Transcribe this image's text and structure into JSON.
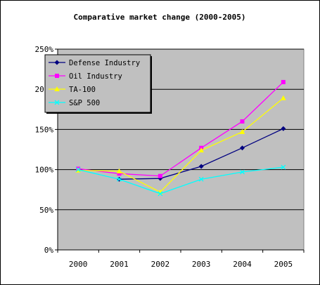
{
  "chart_data": {
    "type": "line",
    "title": "Comparative market change (2000-2005)",
    "xlabel": "",
    "ylabel": "",
    "categories": [
      "2000",
      "2001",
      "2002",
      "2003",
      "2004",
      "2005"
    ],
    "ylim": [
      0,
      250
    ],
    "yticks": [
      0,
      50,
      100,
      150,
      200,
      250
    ],
    "ytick_labels": [
      "0%",
      "50%",
      "100%",
      "150%",
      "200%",
      "250%"
    ],
    "grid": true,
    "plot_background": "#c0c0c0",
    "legend_position": "top-left",
    "series": [
      {
        "name": "Defense Industry",
        "values": [
          null,
          88,
          89,
          104,
          127,
          151
        ],
        "color": "#000080",
        "marker": "diamond"
      },
      {
        "name": "Oil Industry",
        "values": [
          101,
          95,
          92,
          127,
          160,
          209
        ],
        "color": "#ff00ff",
        "marker": "square"
      },
      {
        "name": "TA-100",
        "values": [
          99,
          98,
          72,
          124,
          147,
          189
        ],
        "color": "#ffff00",
        "marker": "triangle"
      },
      {
        "name": "S&P 500",
        "values": [
          100,
          88,
          70,
          88,
          97,
          103
        ],
        "color": "#00ffff",
        "marker": "x"
      }
    ]
  }
}
